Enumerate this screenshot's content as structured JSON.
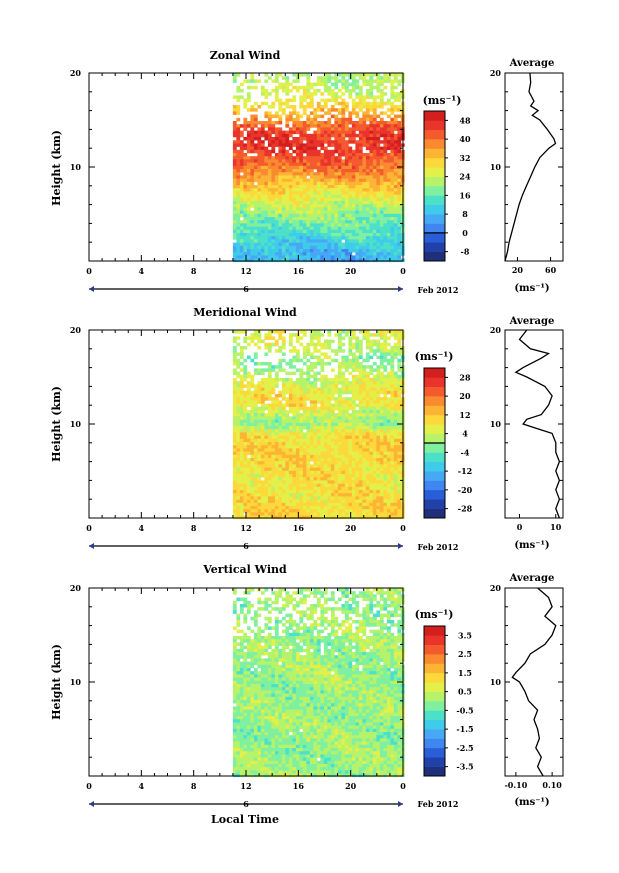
{
  "figure": {
    "month_label": "Feb 2012",
    "xlabel_bottom": "Local Time",
    "unit": "(ms⁻¹)",
    "avg_unit": "(ms⁻¹)"
  },
  "chart_data": [
    {
      "type": "heatmap",
      "title": "Zonal Wind",
      "ylabel": "Height (km)",
      "ylim": [
        0,
        20
      ],
      "yticks": [
        "10",
        "20"
      ],
      "xticks": [
        "0",
        "4",
        "8",
        "12",
        "16",
        "20",
        "0"
      ],
      "date_marker": "6",
      "data_start_hour": 11,
      "colorbar": {
        "unit": "(ms⁻¹)",
        "ticks": [
          "-8",
          "0",
          "8",
          "16",
          "24",
          "32",
          "40",
          "48"
        ],
        "range": [
          -12,
          52
        ],
        "zero_contour": 0,
        "colors": [
          "#202f7a",
          "#2140a8",
          "#2a5dd8",
          "#3f86f0",
          "#47a8f5",
          "#3fcbea",
          "#4de0c8",
          "#7ff0a0",
          "#b6f26a",
          "#e4f04a",
          "#fcd83a",
          "#fcb435",
          "#fa8a30",
          "#f45a2e",
          "#e8342a",
          "#d41f1f"
        ]
      },
      "profile_pattern": [
        {
          "h": 1,
          "v": 8
        },
        {
          "h": 3,
          "v": 14
        },
        {
          "h": 5,
          "v": 20
        },
        {
          "h": 7,
          "v": 27
        },
        {
          "h": 9,
          "v": 36
        },
        {
          "h": 10.5,
          "v": 42
        },
        {
          "h": 12,
          "v": 46
        },
        {
          "h": 13.5,
          "v": 45
        },
        {
          "h": 15,
          "v": 38
        },
        {
          "h": 16.5,
          "v": 30
        },
        {
          "h": 18,
          "v": 24
        },
        {
          "h": 19.5,
          "v": 22
        }
      ],
      "average": {
        "title": "Average",
        "xticks": [
          "20",
          "60"
        ],
        "xlim": [
          5,
          75
        ],
        "profile": [
          {
            "h": 0,
            "v": 5
          },
          {
            "h": 1,
            "v": 8
          },
          {
            "h": 2,
            "v": 10
          },
          {
            "h": 3,
            "v": 13
          },
          {
            "h": 4,
            "v": 16
          },
          {
            "h": 5,
            "v": 19
          },
          {
            "h": 6,
            "v": 22
          },
          {
            "h": 7,
            "v": 26
          },
          {
            "h": 8,
            "v": 31
          },
          {
            "h": 9,
            "v": 36
          },
          {
            "h": 10,
            "v": 41
          },
          {
            "h": 11,
            "v": 47
          },
          {
            "h": 12,
            "v": 58
          },
          {
            "h": 12.5,
            "v": 66
          },
          {
            "h": 13,
            "v": 64
          },
          {
            "h": 14,
            "v": 56
          },
          {
            "h": 15,
            "v": 47
          },
          {
            "h": 15.5,
            "v": 38
          },
          {
            "h": 16,
            "v": 45
          },
          {
            "h": 16.5,
            "v": 36
          },
          {
            "h": 17,
            "v": 40
          },
          {
            "h": 18,
            "v": 34
          },
          {
            "h": 19,
            "v": 36
          },
          {
            "h": 20,
            "v": 35
          }
        ]
      }
    },
    {
      "type": "heatmap",
      "title": "Meridional Wind",
      "ylabel": "Height (km)",
      "ylim": [
        0,
        20
      ],
      "yticks": [
        "10",
        "20"
      ],
      "xticks": [
        "0",
        "4",
        "8",
        "12",
        "16",
        "20",
        "0"
      ],
      "date_marker": "6",
      "data_start_hour": 11,
      "colorbar": {
        "unit": "(ms⁻¹)",
        "ticks": [
          "-28",
          "-20",
          "-12",
          "-4",
          "4",
          "12",
          "20",
          "28"
        ],
        "range": [
          -32,
          32
        ],
        "zero_contour": 0,
        "colors": [
          "#202f7a",
          "#2140a8",
          "#2a5dd8",
          "#3f86f0",
          "#47a8f5",
          "#3fcbea",
          "#4de0c8",
          "#7ff0a0",
          "#b6f26a",
          "#e4f04a",
          "#fcd83a",
          "#fcb435",
          "#fa8a30",
          "#f45a2e",
          "#e8342a",
          "#d41f1f"
        ]
      },
      "profile_pattern": [
        {
          "h": 1,
          "v": 10
        },
        {
          "h": 3,
          "v": 8
        },
        {
          "h": 5,
          "v": 9
        },
        {
          "h": 7,
          "v": 10
        },
        {
          "h": 9,
          "v": 8
        },
        {
          "h": 10,
          "v": 0
        },
        {
          "h": 11,
          "v": 3
        },
        {
          "h": 12.5,
          "v": 9
        },
        {
          "h": 14,
          "v": 6
        },
        {
          "h": 15.5,
          "v": 2
        },
        {
          "h": 17,
          "v": 0
        },
        {
          "h": 18.5,
          "v": 5
        }
      ],
      "average": {
        "title": "Average",
        "xticks": [
          "0",
          "10"
        ],
        "xlim": [
          -4,
          12
        ],
        "profile": [
          {
            "h": 0,
            "v": 11
          },
          {
            "h": 1,
            "v": 10
          },
          {
            "h": 2,
            "v": 11
          },
          {
            "h": 3,
            "v": 10
          },
          {
            "h": 4,
            "v": 11
          },
          {
            "h": 5,
            "v": 10
          },
          {
            "h": 6,
            "v": 11
          },
          {
            "h": 7,
            "v": 10
          },
          {
            "h": 8,
            "v": 10
          },
          {
            "h": 9,
            "v": 9
          },
          {
            "h": 9.5,
            "v": 5
          },
          {
            "h": 10,
            "v": 1
          },
          {
            "h": 10.5,
            "v": 2
          },
          {
            "h": 11,
            "v": 6
          },
          {
            "h": 12,
            "v": 8
          },
          {
            "h": 13,
            "v": 9
          },
          {
            "h": 14,
            "v": 7
          },
          {
            "h": 15,
            "v": 2
          },
          {
            "h": 15.5,
            "v": -1
          },
          {
            "h": 16,
            "v": 1
          },
          {
            "h": 17,
            "v": 6
          },
          {
            "h": 17.5,
            "v": 8
          },
          {
            "h": 18,
            "v": 3
          },
          {
            "h": 19,
            "v": 0
          },
          {
            "h": 20,
            "v": 2
          }
        ]
      }
    },
    {
      "type": "heatmap",
      "title": "Vertical Wind",
      "ylabel": "Height (km)",
      "ylim": [
        0,
        20
      ],
      "yticks": [
        "10",
        "20"
      ],
      "xticks": [
        "0",
        "4",
        "8",
        "12",
        "16",
        "20",
        "0"
      ],
      "date_marker": "6",
      "data_start_hour": 11,
      "colorbar": {
        "unit": "(ms⁻¹)",
        "ticks": [
          "-3.5",
          "-2.5",
          "-1.5",
          "-0.5",
          "0.5",
          "1.5",
          "2.5",
          "3.5"
        ],
        "range": [
          -4,
          4
        ],
        "zero_contour": null,
        "colors": [
          "#202f7a",
          "#2140a8",
          "#2a5dd8",
          "#3f86f0",
          "#47a8f5",
          "#3fcbea",
          "#4de0c8",
          "#7ff0a0",
          "#b6f26a",
          "#e4f04a",
          "#fcd83a",
          "#fcb435",
          "#fa8a30",
          "#f45a2e",
          "#e8342a",
          "#d41f1f"
        ]
      },
      "profile_pattern": [
        {
          "h": 1,
          "v": 0.05
        },
        {
          "h": 5,
          "v": 0.02
        },
        {
          "h": 10,
          "v": 0.0
        },
        {
          "h": 15,
          "v": 0.05
        },
        {
          "h": 19,
          "v": 0.08
        }
      ],
      "average": {
        "title": "Average",
        "xticks": [
          "-0.10",
          "0.10"
        ],
        "xlim": [
          -0.16,
          0.16
        ],
        "profile": [
          {
            "h": 0,
            "v": 0.05
          },
          {
            "h": 1,
            "v": 0.02
          },
          {
            "h": 2,
            "v": 0.04
          },
          {
            "h": 3,
            "v": 0.01
          },
          {
            "h": 4,
            "v": 0.03
          },
          {
            "h": 5,
            "v": 0.02
          },
          {
            "h": 6,
            "v": 0.0
          },
          {
            "h": 7,
            "v": 0.02
          },
          {
            "h": 8,
            "v": -0.03
          },
          {
            "h": 9,
            "v": -0.05
          },
          {
            "h": 10,
            "v": -0.08
          },
          {
            "h": 10.5,
            "v": -0.12
          },
          {
            "h": 11,
            "v": -0.1
          },
          {
            "h": 12,
            "v": -0.05
          },
          {
            "h": 13,
            "v": -0.02
          },
          {
            "h": 14,
            "v": 0.06
          },
          {
            "h": 15,
            "v": 0.1
          },
          {
            "h": 16,
            "v": 0.12
          },
          {
            "h": 17,
            "v": 0.06
          },
          {
            "h": 18,
            "v": 0.1
          },
          {
            "h": 19,
            "v": 0.08
          },
          {
            "h": 20,
            "v": 0.02
          }
        ]
      }
    }
  ]
}
